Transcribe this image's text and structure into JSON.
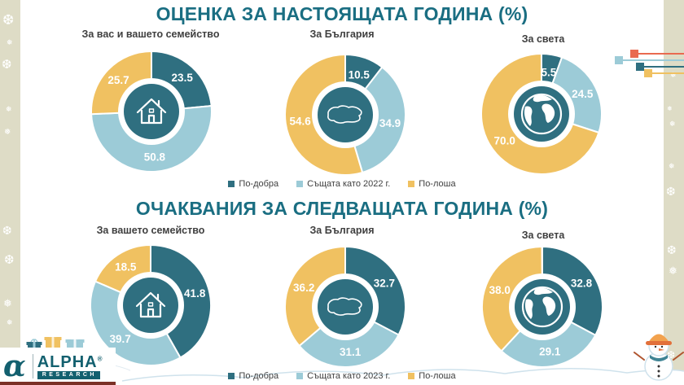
{
  "colors": {
    "better": "#2f6f80",
    "same": "#9ccbd7",
    "worse": "#f0c161",
    "title_teal": "#1a6e82",
    "accent_red": "#e96a50",
    "side_band": "#dedcc6",
    "logo_teal": "#13606f"
  },
  "sections": [
    {
      "title": "ОЦЕНКА ЗА НАСТОЯЩАТА ГОДИНА (%)",
      "legend": [
        {
          "label": "По-добра",
          "color": "#2f6f80"
        },
        {
          "label": "Същата като 2022 г.",
          "color": "#9ccbd7"
        },
        {
          "label": "По-лоша",
          "color": "#f0c161"
        }
      ],
      "charts": [
        {
          "label": "За вас и вашето семейство",
          "icon": "house-icon"
        },
        {
          "label": "За България",
          "icon": "bulgaria-map-icon"
        },
        {
          "label": "За света",
          "icon": "globe-icon"
        }
      ]
    },
    {
      "title": "ОЧАКВАНИЯ ЗА СЛЕДВАЩАТА ГОДИНА (%)",
      "legend": [
        {
          "label": "По-добра",
          "color": "#2f6f80"
        },
        {
          "label": "Същата като 2023 г.",
          "color": "#9ccbd7"
        },
        {
          "label": "По-лоша",
          "color": "#f0c161"
        }
      ],
      "charts": [
        {
          "label": "За вашето семейство",
          "icon": "house-icon"
        },
        {
          "label": "За България",
          "icon": "bulgaria-map-icon"
        },
        {
          "label": "За света",
          "icon": "globe-icon"
        }
      ]
    }
  ],
  "chart_data": [
    {
      "type": "pie",
      "donut": true,
      "title": "Оценка за настоящата година — За вас и вашето семейство",
      "labels": [
        "По-добра",
        "Същата като 2022 г.",
        "По-лоша"
      ],
      "values": [
        23.5,
        50.8,
        25.7
      ],
      "colors": [
        "#2f6f80",
        "#9ccbd7",
        "#f0c161"
      ],
      "icon": "house-icon",
      "start_angle": "12 o'clock, clockwise"
    },
    {
      "type": "pie",
      "donut": true,
      "title": "Оценка за настоящата година — За България",
      "labels": [
        "По-добра",
        "Същата като 2022 г.",
        "По-лоша"
      ],
      "values": [
        10.5,
        34.9,
        54.6
      ],
      "colors": [
        "#2f6f80",
        "#9ccbd7",
        "#f0c161"
      ],
      "icon": "bulgaria-map-icon",
      "start_angle": "12 o'clock, clockwise"
    },
    {
      "type": "pie",
      "donut": true,
      "title": "Оценка за настоящата година — За света",
      "labels": [
        "По-добра",
        "Същата като 2022 г.",
        "По-лоша"
      ],
      "values": [
        5.5,
        24.5,
        70.0
      ],
      "colors": [
        "#2f6f80",
        "#9ccbd7",
        "#f0c161"
      ],
      "icon": "globe-icon",
      "start_angle": "12 o'clock, clockwise"
    },
    {
      "type": "pie",
      "donut": true,
      "title": "Очаквания за следващата година — За вашето семейство",
      "labels": [
        "По-добра",
        "Същата като 2023 г.",
        "По-лоша"
      ],
      "values": [
        41.8,
        39.7,
        18.5
      ],
      "colors": [
        "#2f6f80",
        "#9ccbd7",
        "#f0c161"
      ],
      "icon": "house-icon",
      "start_angle": "12 o'clock, clockwise"
    },
    {
      "type": "pie",
      "donut": true,
      "title": "Очаквания за следващата година — За България",
      "labels": [
        "По-добра",
        "Същата като 2023 г.",
        "По-лоша"
      ],
      "values": [
        32.7,
        31.1,
        36.2
      ],
      "colors": [
        "#2f6f80",
        "#9ccbd7",
        "#f0c161"
      ],
      "icon": "bulgaria-map-icon",
      "start_angle": "12 o'clock, clockwise"
    },
    {
      "type": "pie",
      "donut": true,
      "title": "Очаквания за следващата година — За света",
      "labels": [
        "По-добра",
        "Същата като 2023 г.",
        "По-лоша"
      ],
      "values": [
        32.8,
        29.1,
        38.0
      ],
      "colors": [
        "#2f6f80",
        "#9ccbd7",
        "#f0c161"
      ],
      "icon": "globe-icon",
      "start_angle": "12 o'clock, clockwise"
    }
  ],
  "logo": {
    "mark": "α",
    "name": "ALPHA",
    "reg": "®",
    "sub": "RESEARCH"
  },
  "icons": {
    "snowflake": "❅",
    "snowflake_alt": "❆"
  }
}
